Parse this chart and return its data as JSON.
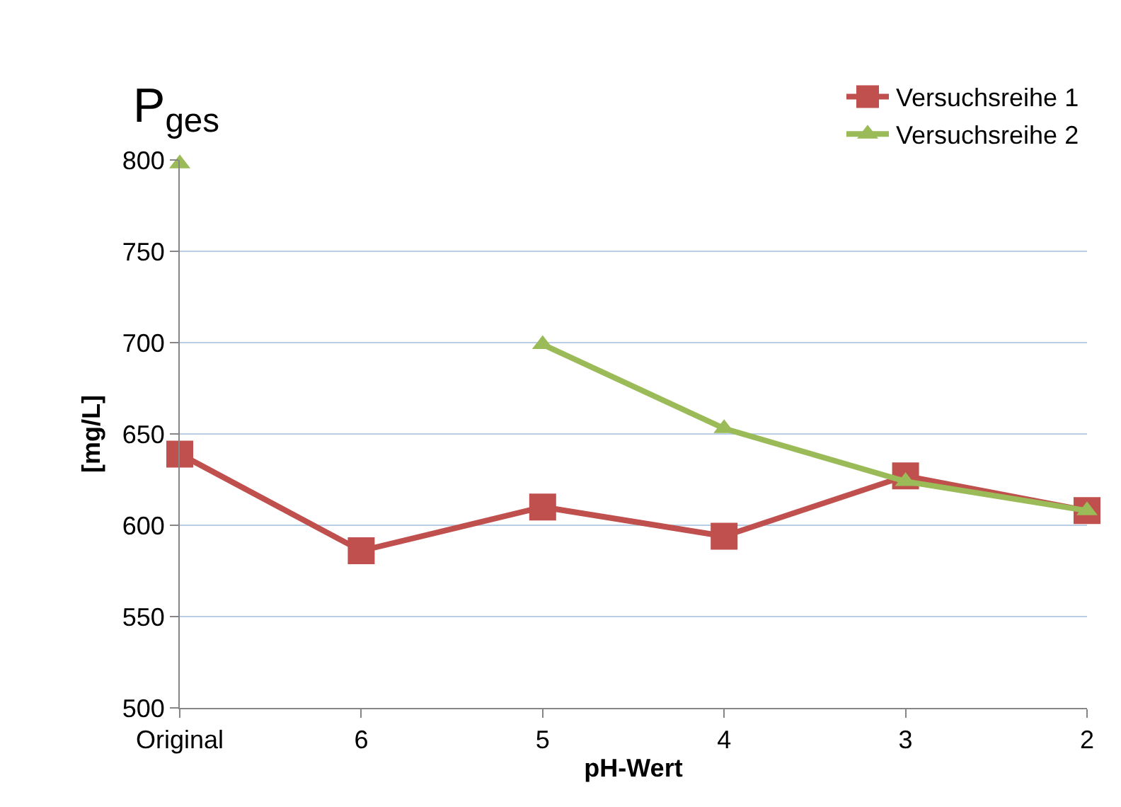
{
  "chart_data": {
    "type": "line",
    "title": "P$_{ges}$",
    "xlabel": "pH-Wert",
    "ylabel": "[mg/L]",
    "categories": [
      "Original",
      "6",
      "5",
      "4",
      "3",
      "2"
    ],
    "series": [
      {
        "name": "Versuchsreihe 1",
        "color": "#c0504d",
        "marker": "square",
        "values": [
          639,
          586,
          610,
          594,
          627,
          608
        ]
      },
      {
        "name": "Versuchsreihe 2",
        "color": "#9bbb59",
        "marker": "triangle",
        "values": [
          798,
          null,
          699,
          653,
          624,
          608
        ]
      }
    ],
    "ylim": [
      500,
      800
    ],
    "yticks": [
      500,
      550,
      600,
      650,
      700,
      750,
      800
    ],
    "grid": "y",
    "legend": "top right",
    "line_style": "solid"
  }
}
